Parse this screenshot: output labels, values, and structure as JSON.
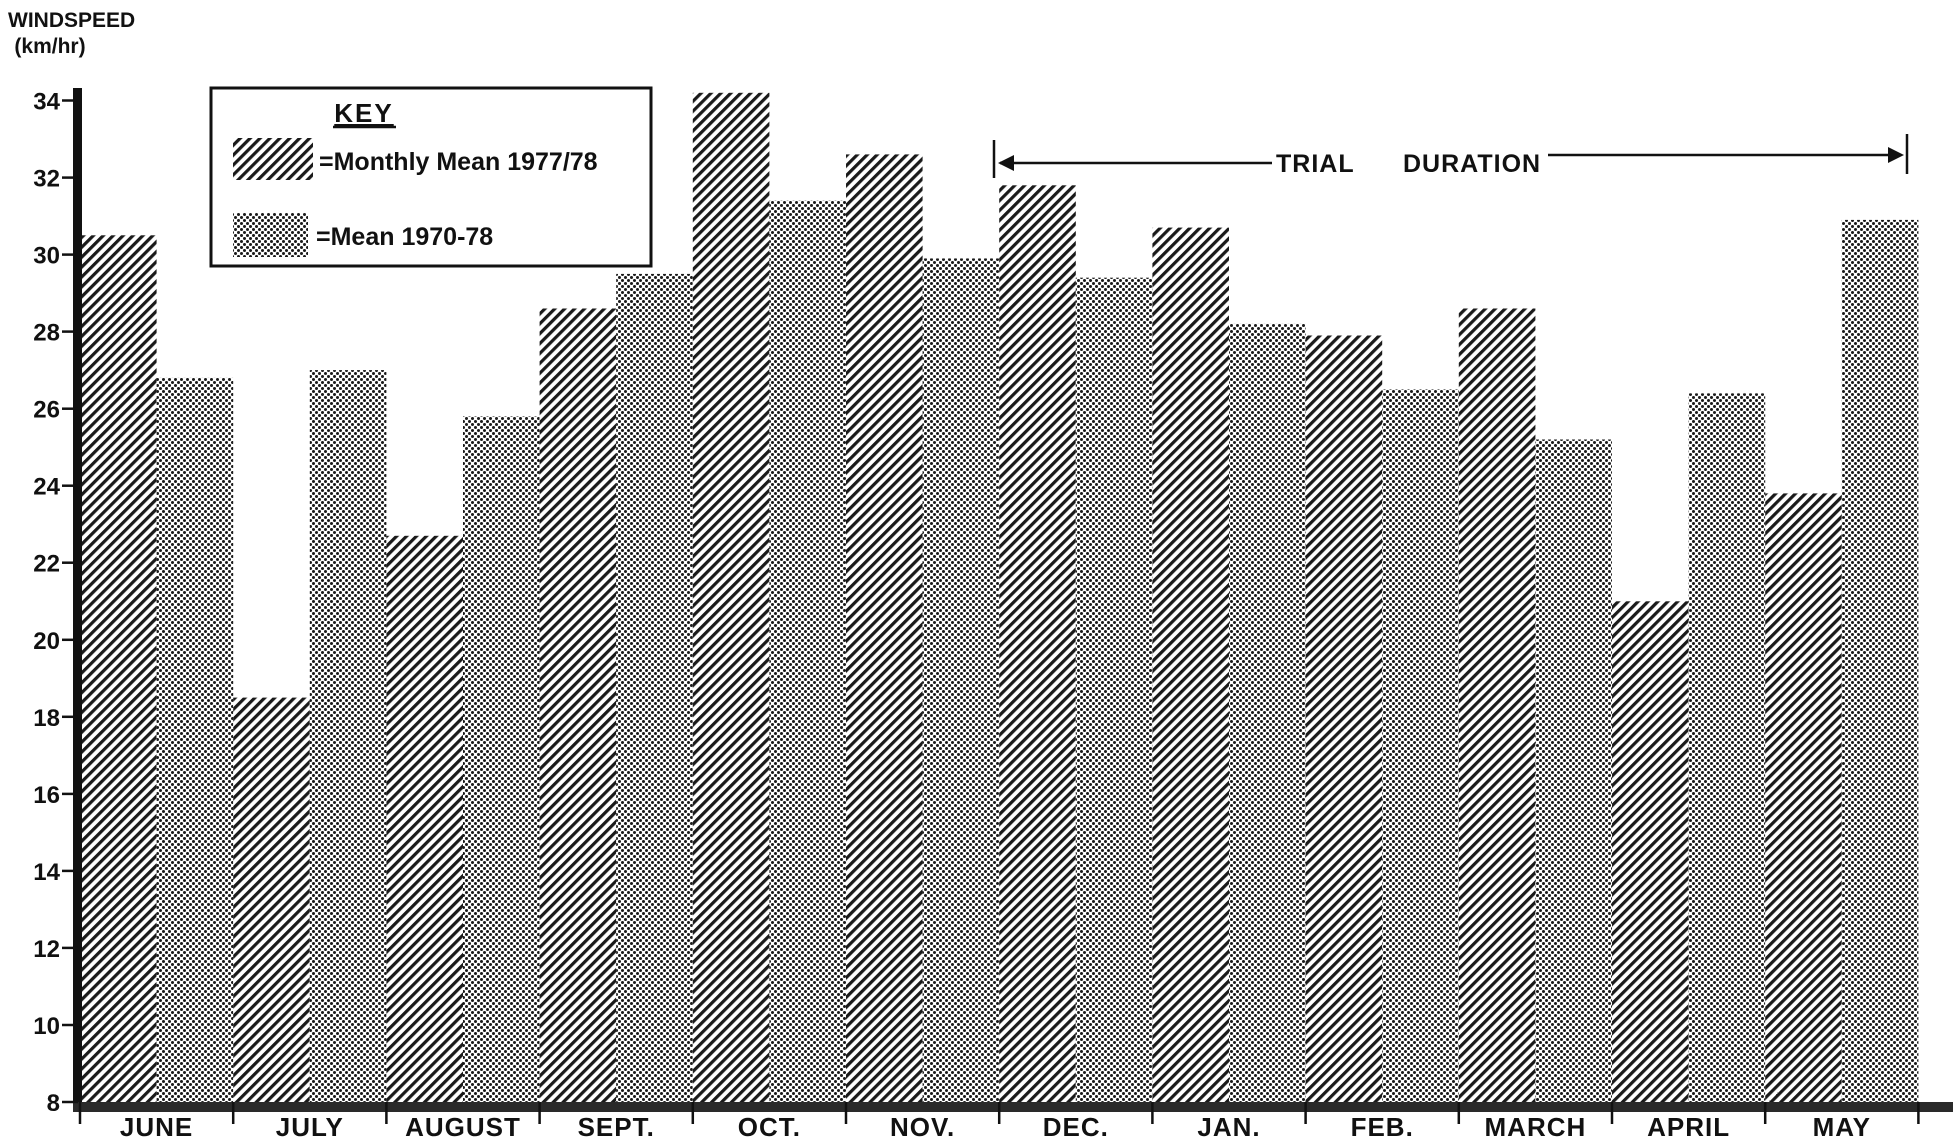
{
  "chart_data": {
    "type": "bar",
    "ylabel_line1": "WINDSPEED",
    "ylabel_line2": "(km/hr)",
    "xlabel": "",
    "ylim": [
      8,
      35
    ],
    "yticks": [
      8,
      10,
      12,
      14,
      16,
      18,
      20,
      22,
      24,
      26,
      28,
      30,
      32,
      34
    ],
    "categories": [
      "JUNE",
      "JULY",
      "AUGUST",
      "SEPT.",
      "OCT.",
      "NOV.",
      "DEC.",
      "JAN.",
      "FEB.",
      "MARCH",
      "APRIL",
      "MAY"
    ],
    "series": [
      {
        "name": "=Monthly Mean 1977/78",
        "pattern": "diagonal-hatch",
        "values": [
          30.5,
          18.5,
          22.7,
          28.6,
          34.2,
          32.6,
          31.8,
          30.7,
          27.9,
          28.6,
          21.0,
          23.8
        ]
      },
      {
        "name": "=Mean 1970-78",
        "pattern": "dot-stipple",
        "values": [
          26.8,
          27.0,
          25.8,
          29.5,
          31.4,
          29.9,
          29.4,
          28.2,
          26.5,
          25.2,
          26.4,
          30.9
        ]
      }
    ],
    "legend": {
      "title": "KEY",
      "placement": "top-left"
    },
    "annotation": {
      "label_left": "TRIAL",
      "label_right": "DURATION",
      "from_category": "DEC.",
      "to_category": "MAY"
    },
    "grid": false
  }
}
